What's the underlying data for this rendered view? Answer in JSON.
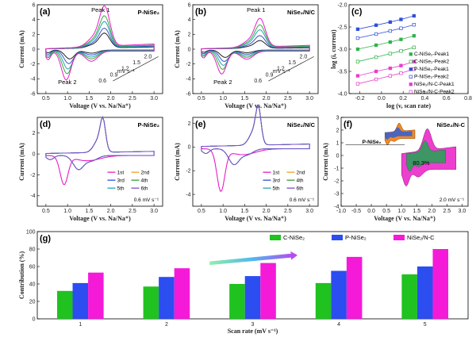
{
  "chart_data": [
    {
      "id": "a",
      "type": "line",
      "panel_label": "(a)",
      "title": "P-NiSe₂",
      "xlabel": "Voltage (V vs. Na/Na⁺)",
      "ylabel": "Current (mA)",
      "xlim": [
        0.3,
        3.2
      ],
      "ylim": [
        -6,
        6
      ],
      "xticks": [
        0.5,
        1.0,
        1.5,
        2.0,
        2.5,
        3.0
      ],
      "yticks": [
        -6,
        -4,
        -2,
        0,
        2,
        4,
        6
      ],
      "xtick_labels": [
        "0.5",
        "1.0",
        "1.5",
        "2.0",
        "2.5",
        "3.0"
      ],
      "ytick_labels": [
        "-6",
        "-4",
        "-2",
        "0",
        "2",
        "4",
        "6"
      ],
      "annotations": [
        "Peak 1",
        "Peak 2"
      ],
      "scan_rate_labels": [
        "0.6",
        "0.9",
        "1.2",
        "1.5",
        "2.0"
      ],
      "scan_rate_unit": "mV s⁻¹",
      "series": [
        {
          "name": "0.6",
          "color": "#222222",
          "peak_ox": 1.9,
          "peak_red": -1.2
        },
        {
          "name": "0.9",
          "color": "#3a54c7",
          "peak_ox": 2.5,
          "peak_red": -1.8
        },
        {
          "name": "1.2",
          "color": "#27a3b5",
          "peak_ox": 3.3,
          "peak_red": -2.5
        },
        {
          "name": "1.5",
          "color": "#3caa3c",
          "peak_ox": 4.0,
          "peak_red": -3.1
        },
        {
          "name": "2.0",
          "color": "#e61ec8",
          "peak_ox": 5.2,
          "peak_red": -3.9
        }
      ]
    },
    {
      "id": "b",
      "type": "line",
      "panel_label": "(b)",
      "title": "NiSe₂/N/C",
      "xlabel": "Voltage (V vs. Na/Na⁺)",
      "ylabel": "Current (mA)",
      "xlim": [
        0.3,
        3.2
      ],
      "ylim": [
        -6,
        6
      ],
      "xticks": [
        0.5,
        1.0,
        1.5,
        2.0,
        2.5,
        3.0
      ],
      "yticks": [
        -6,
        -4,
        -2,
        0,
        2,
        4,
        6
      ],
      "xtick_labels": [
        "0.5",
        "1.0",
        "1.5",
        "2.0",
        "2.5",
        "3.0"
      ],
      "ytick_labels": [
        "-6",
        "-4",
        "-2",
        "0",
        "2",
        "4",
        "6"
      ],
      "annotations": [
        "Peak 1",
        "Peak 2"
      ],
      "scan_rate_labels": [
        "0.6",
        "0.9",
        "1.2",
        "1.5",
        "2.0"
      ],
      "scan_rate_unit": "mV s⁻¹",
      "series": [
        {
          "name": "0.6",
          "color": "#222222",
          "peak_ox": 1.0,
          "peak_red": -1.0
        },
        {
          "name": "0.9",
          "color": "#3a54c7",
          "peak_ox": 1.6,
          "peak_red": -1.5
        },
        {
          "name": "1.2",
          "color": "#27a3b5",
          "peak_ox": 2.3,
          "peak_red": -2.0
        },
        {
          "name": "1.5",
          "color": "#3caa3c",
          "peak_ox": 2.9,
          "peak_red": -2.5
        },
        {
          "name": "2.0",
          "color": "#e61ec8",
          "peak_ox": 3.7,
          "peak_red": -3.1
        }
      ]
    },
    {
      "id": "c",
      "type": "scatter",
      "panel_label": "(c)",
      "xlabel": "log (v, scan rate)",
      "ylabel": "log (i, current)",
      "xlim": [
        -0.3,
        0.8
      ],
      "ylim": [
        -4.0,
        -2.0
      ],
      "xticks": [
        -0.2,
        0.0,
        0.2,
        0.4,
        0.6,
        0.8
      ],
      "yticks": [
        -4.0,
        -3.5,
        -3.0,
        -2.5,
        -2.0
      ],
      "xtick_labels": [
        "-0.2",
        "0.0",
        "0.2",
        "0.4",
        "0.6",
        "0.8"
      ],
      "ytick_labels": [
        "-4.0",
        "-3.5",
        "-3.0",
        "-2.5",
        "-2.0"
      ],
      "x": [
        -0.22,
        -0.05,
        0.08,
        0.18,
        0.3
      ],
      "series": [
        {
          "name": "C-NiSe₂-Peak1",
          "color": "#2fb34a",
          "marker": "filled",
          "y": [
            -3.0,
            -2.91,
            -2.84,
            -2.78,
            -2.7
          ]
        },
        {
          "name": "C-NiSe₂-Peak2",
          "color": "#2fb34a",
          "marker": "open",
          "y": [
            -3.28,
            -3.18,
            -3.1,
            -3.04,
            -2.96
          ]
        },
        {
          "name": "P-NiSe₂-Peak1",
          "color": "#2f4fd8",
          "marker": "filled",
          "y": [
            -2.55,
            -2.46,
            -2.39,
            -2.33,
            -2.25
          ]
        },
        {
          "name": "P-NiSe₂-Peak2",
          "color": "#2f4fd8",
          "marker": "open",
          "y": [
            -2.75,
            -2.66,
            -2.59,
            -2.53,
            -2.45
          ]
        },
        {
          "name": "NiSe₂/N-C-Peak1",
          "color": "#e640c8",
          "marker": "filled",
          "y": [
            -3.6,
            -3.5,
            -3.43,
            -3.37,
            -3.28
          ]
        },
        {
          "name": "NiSe₂/N-C-Peak2",
          "color": "#e640c8",
          "marker": "open",
          "y": [
            -3.78,
            -3.68,
            -3.6,
            -3.54,
            -3.45
          ]
        }
      ]
    },
    {
      "id": "d",
      "type": "line",
      "panel_label": "(d)",
      "title": "P-NiSe₂",
      "xlabel": "Voltage (V vs. Na/Na⁺)",
      "ylabel": "Current (mA)",
      "xlim": [
        0.3,
        3.2
      ],
      "ylim": [
        -5,
        3.5
      ],
      "xticks": [
        0.5,
        1.0,
        1.5,
        2.0,
        2.5,
        3.0
      ],
      "yticks": [
        -4,
        -2,
        0,
        2
      ],
      "xtick_labels": [
        "0.5",
        "1.0",
        "1.5",
        "2.0",
        "2.5",
        "3.0"
      ],
      "ytick_labels": [
        "-4",
        "-2",
        "0",
        "2"
      ],
      "scan_rate_note": "0.6 mV s⁻¹",
      "series": [
        {
          "name": "1st",
          "color": "#e61ec8"
        },
        {
          "name": "2nd",
          "color": "#f0a020"
        },
        {
          "name": "3rd",
          "color": "#2f4fd8"
        },
        {
          "name": "4th",
          "color": "#3a9a3a"
        },
        {
          "name": "5th",
          "color": "#27a3b5"
        },
        {
          "name": "6th",
          "color": "#7a4fd0"
        }
      ]
    },
    {
      "id": "e",
      "type": "line",
      "panel_label": "(e)",
      "title": "NiSe₂/N/C",
      "xlabel": "Voltage (V vs. Na/Na⁺)",
      "ylabel": "Current (mA)",
      "xlim": [
        0.3,
        3.2
      ],
      "ylim": [
        -5,
        2.5
      ],
      "xticks": [
        0.5,
        1.0,
        1.5,
        2.0,
        2.5,
        3.0
      ],
      "yticks": [
        -4,
        -2,
        0,
        2
      ],
      "xtick_labels": [
        "0.5",
        "1.0",
        "1.5",
        "2.0",
        "2.5",
        "3.0"
      ],
      "ytick_labels": [
        "-4",
        "-2",
        "0",
        "2"
      ],
      "scan_rate_note": "0.6 mV s⁻¹",
      "series": [
        {
          "name": "1st",
          "color": "#e61ec8"
        },
        {
          "name": "2nd",
          "color": "#f0a020"
        },
        {
          "name": "3rd",
          "color": "#2f4fd8"
        },
        {
          "name": "4th",
          "color": "#3a9a3a"
        },
        {
          "name": "5th",
          "color": "#27a3b5"
        },
        {
          "name": "6th",
          "color": "#7a4fd0"
        }
      ]
    },
    {
      "id": "f",
      "type": "area",
      "panel_label": "(f)",
      "title": "NiSe₂/N-C",
      "xlabel": "Voltage (V vs. Na/Na⁺)",
      "ylabel": "Current (mA)",
      "xlim": [
        -1.0,
        3.2
      ],
      "ylim": [
        -4,
        3
      ],
      "xticks": [
        -1.0,
        -0.5,
        0.0,
        0.5,
        1.0,
        1.5,
        2.0,
        2.5,
        3.0
      ],
      "yticks": [
        -4,
        -3,
        -2,
        -1,
        0,
        1,
        2,
        3
      ],
      "xtick_labels": [
        "-1.0",
        "-0.5",
        "0.0",
        "0.5",
        "1.0",
        "1.5",
        "2.0",
        "2.5",
        "3.0"
      ],
      "ytick_labels": [
        "-4",
        "-3",
        "-2",
        "-1",
        "0",
        "1",
        "2",
        "3"
      ],
      "inset_label": "P-NiSe₂",
      "percent_label": "80.3%",
      "scan_rate_note": "2.0 mV s⁻¹",
      "capacitive_fraction": 0.803,
      "colors": {
        "total": "#ec3ecf",
        "capacitive": "#2f9e5a",
        "inset_total": "#f08a24",
        "inset_capacitive": "#3a5fd0"
      }
    },
    {
      "id": "g",
      "type": "bar",
      "panel_label": "(g)",
      "xlabel": "Scan rate (mV s⁻¹)",
      "ylabel": "Contribution (%)",
      "ylim": [
        0,
        100
      ],
      "yticks": [
        0,
        20,
        40,
        60,
        80,
        100
      ],
      "ytick_labels": [
        "0",
        "20",
        "40",
        "60",
        "80",
        "100"
      ],
      "categories": [
        "1",
        "2",
        "3",
        "4",
        "5"
      ],
      "series": [
        {
          "name": "C-NiSe₂",
          "color": "#1fc21f",
          "values": [
            32,
            37,
            40,
            41,
            51
          ]
        },
        {
          "name": "P-NiSe₂",
          "color": "#2c4df0",
          "values": [
            41,
            48,
            49,
            55,
            60
          ]
        },
        {
          "name": "NiSe₂/N-C",
          "color": "#f51ad8",
          "values": [
            53,
            58,
            64,
            71,
            80
          ]
        }
      ],
      "legend_position": "top-right"
    }
  ]
}
